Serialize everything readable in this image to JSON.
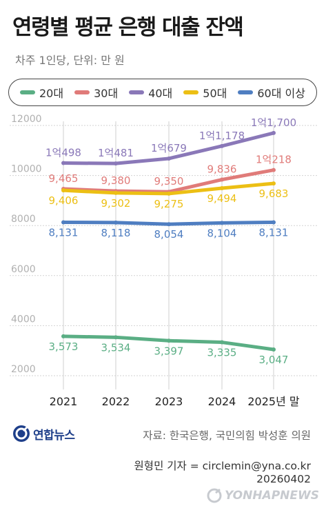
{
  "title": "연령별 평균 은행 대출 잔액",
  "subtitle": "차주 1인당, 단위: 만 원",
  "legend": [
    {
      "label": "20대",
      "color": "#5aae84"
    },
    {
      "label": "30대",
      "color": "#e07b79"
    },
    {
      "label": "40대",
      "color": "#8a78b8"
    },
    {
      "label": "50대",
      "color": "#ecbf14"
    },
    {
      "label": "60대 이상",
      "color": "#4f7ec1"
    }
  ],
  "chart_data": {
    "type": "line",
    "title": "연령별 평균 은행 대출 잔액",
    "ylabel": "",
    "categories": [
      "2021",
      "2022",
      "2023",
      "2024",
      "2025년 말"
    ],
    "ylim": [
      2000,
      12000
    ],
    "yticks": [
      2000,
      4000,
      6000,
      8000,
      10000,
      12000
    ],
    "grid": true,
    "legend_position": "top",
    "series": [
      {
        "name": "20대",
        "color": "#5aae84",
        "values": [
          3573,
          3534,
          3397,
          3335,
          3047
        ],
        "labels": [
          "3,573",
          "3,534",
          "3,397",
          "3,335",
          "3,047"
        ],
        "label_pos": "below"
      },
      {
        "name": "30대",
        "color": "#e07b79",
        "values": [
          9465,
          9380,
          9350,
          9836,
          10218
        ],
        "labels": [
          "9,465",
          "9,380",
          "9,350",
          "9,836",
          "1억218"
        ],
        "label_pos": "above"
      },
      {
        "name": "40대",
        "color": "#8a78b8",
        "values": [
          10498,
          10481,
          10679,
          11178,
          11700
        ],
        "labels": [
          "1억498",
          "1억481",
          "1억679",
          "1억1,178",
          "1억1,700"
        ],
        "label_pos": "above"
      },
      {
        "name": "50대",
        "color": "#ecbf14",
        "values": [
          9406,
          9302,
          9275,
          9494,
          9683
        ],
        "labels": [
          "9,406",
          "9,302",
          "9,275",
          "9,494",
          "9,683"
        ],
        "label_pos": "below"
      },
      {
        "name": "60대 이상",
        "color": "#4f7ec1",
        "values": [
          8131,
          8118,
          8054,
          8104,
          8131
        ],
        "labels": [
          "8,131",
          "8,118",
          "8,054",
          "8,104",
          "8,131"
        ],
        "label_pos": "below"
      }
    ]
  },
  "footer": {
    "logo": "연합뉴스",
    "source": "자료: 한국은행, 국민의힘 박성훈 의원",
    "reporter": "원형민 기자 = circlemin@yna.co.kr",
    "date": "20260402",
    "watermark": "YONHAPNEWS"
  }
}
